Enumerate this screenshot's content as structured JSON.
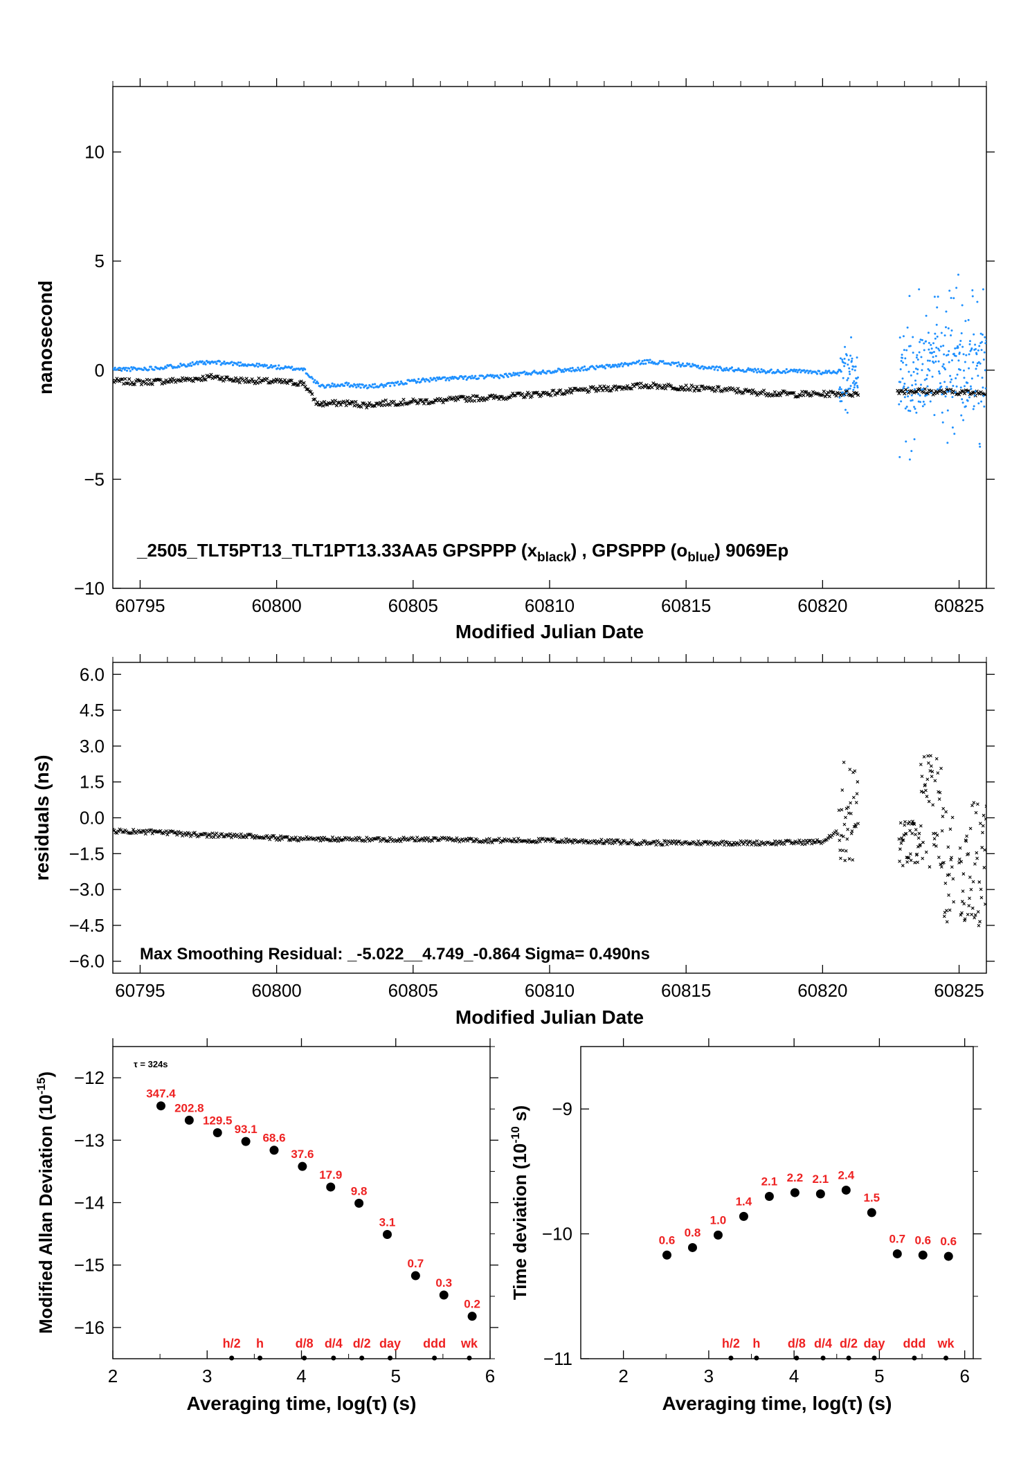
{
  "chart_data": [
    {
      "type": "scatter",
      "xlabel": "Modified Julian Date",
      "ylabel": "nanosecond",
      "xlim": [
        60794,
        60826
      ],
      "ylim": [
        -10,
        13
      ],
      "xticks": [
        60795,
        60800,
        60805,
        60810,
        60815,
        60820,
        60825
      ],
      "yticks": [
        -10,
        -5,
        0,
        5,
        10
      ],
      "annotation": {
        "prefix": "_2505_TLT5PT13_TLT1PT13.33AA5     GPSPPP (x",
        "sub1": "black",
        "mid": ") ,  GPSPPP (o",
        "sub2": "blue",
        "suffix": ")  9069Ep"
      },
      "colors": {
        "black_series": "#000000",
        "blue_series": "#1e90ff"
      },
      "series": [
        {
          "color": "#000000",
          "marker": "x",
          "x": [
            60794.0,
            60795.0,
            60796.0,
            60797.0,
            60797.7,
            60798.5,
            60799.5,
            60800.3,
            60801.0,
            60801.3,
            60801.5,
            60802.5,
            60803.3,
            60804.0,
            60805.0,
            60806.0,
            60807.0,
            60808.0,
            60809.0,
            60810.0,
            60811.0,
            60812.0,
            60813.0,
            60813.6,
            60814.5,
            60815.5,
            60816.5,
            60817.3,
            60818.0,
            60819.0,
            60820.0,
            60820.8,
            60821.3,
            60822.8,
            60823.5,
            60824.0,
            60824.5,
            60825.0,
            60825.5,
            60826.0
          ],
          "y": [
            -0.5,
            -0.55,
            -0.5,
            -0.4,
            -0.3,
            -0.45,
            -0.5,
            -0.55,
            -0.6,
            -1.2,
            -1.55,
            -1.5,
            -1.6,
            -1.5,
            -1.45,
            -1.4,
            -1.3,
            -1.25,
            -1.15,
            -1.05,
            -0.95,
            -0.85,
            -0.75,
            -0.7,
            -0.75,
            -0.85,
            -0.9,
            -1.0,
            -1.05,
            -1.1,
            -1.1,
            -1.05,
            -1.1,
            -0.95,
            -0.95,
            -1.0,
            -1.0,
            -1.0,
            -1.05,
            -1.0
          ]
        },
        {
          "color": "#1e90ff",
          "marker": "o",
          "x": [
            60794.0,
            60795.0,
            60796.0,
            60797.0,
            60797.7,
            60798.5,
            60799.5,
            60800.3,
            60801.0,
            60801.3,
            60801.6,
            60802.5,
            60803.3,
            60804.0,
            60805.0,
            60806.0,
            60807.0,
            60808.0,
            60809.0,
            60810.0,
            60811.0,
            60812.0,
            60813.0,
            60813.6,
            60814.5,
            60815.5,
            60816.5,
            60817.3,
            60818.0,
            60819.0,
            60820.0,
            60820.7
          ],
          "y": [
            0.05,
            0.05,
            0.15,
            0.3,
            0.35,
            0.3,
            0.2,
            0.1,
            0.05,
            -0.4,
            -0.75,
            -0.65,
            -0.75,
            -0.7,
            -0.5,
            -0.4,
            -0.35,
            -0.3,
            -0.15,
            -0.05,
            0.05,
            0.15,
            0.3,
            0.4,
            0.3,
            0.15,
            0.05,
            0.0,
            -0.05,
            -0.05,
            -0.1,
            -0.05
          ]
        }
      ]
    },
    {
      "type": "scatter",
      "xlabel": "Modified Julian Date",
      "ylabel": "residuals (ns)",
      "xlim": [
        60794,
        60826
      ],
      "ylim": [
        -6.5,
        6.5
      ],
      "xticks": [
        60795,
        60800,
        60805,
        60810,
        60815,
        60820,
        60825
      ],
      "yticks": [
        -6.0,
        -4.5,
        -3.0,
        -1.5,
        0.0,
        1.5,
        3.0,
        4.5,
        6.0
      ],
      "ytick_labels": [
        "−6.0",
        "−4.5",
        "−3.0",
        "−1.5",
        "0.0",
        "1.5",
        "3.0",
        "4.5",
        "6.0"
      ],
      "annotation": "Max Smoothing Residual: _-5.022__4.749_-0.864  Sigma= 0.490ns",
      "series": [
        {
          "color": "#000000",
          "marker": "x",
          "x": [
            60794.0,
            60795.5,
            60797.0,
            60798.5,
            60800.0,
            60802.0,
            60804.0,
            60806.0,
            60808.0,
            60810.0,
            60812.0,
            60814.0,
            60816.0,
            60818.0,
            60820.0,
            60820.7,
            60821.0,
            60821.2,
            60822.8,
            60823.3,
            60823.8,
            60824.0,
            60824.3,
            60824.6,
            60825.0,
            60825.5,
            60826.0
          ],
          "y": [
            -0.55,
            -0.6,
            -0.7,
            -0.75,
            -0.85,
            -0.9,
            -0.9,
            -0.9,
            -0.95,
            -0.95,
            -1.0,
            -1.05,
            -1.05,
            -1.05,
            -1.0,
            -0.5,
            0.0,
            1.5,
            -1.1,
            -1.3,
            -1.0,
            1.0,
            -2.0,
            -3.5,
            -0.5,
            -2.5,
            -4.3
          ]
        }
      ]
    },
    {
      "type": "scatter",
      "xlabel": "Averaging time, log(τ) (s)",
      "ylabel": "Modified Allan Deviation (10",
      "ylabel_sup": "-15",
      "ylabel_tail": ")",
      "tau_note": "τ = 324s",
      "xlim": [
        2,
        6
      ],
      "ylim": [
        -16.5,
        -11.5
      ],
      "xticks": [
        2,
        3,
        4,
        5,
        6
      ],
      "yticks": [
        -16,
        -15,
        -14,
        -13,
        -12
      ],
      "x": [
        2.51,
        2.81,
        3.11,
        3.41,
        3.71,
        4.01,
        4.31,
        4.61,
        4.91,
        5.21,
        5.51,
        5.81
      ],
      "y": [
        -12.45,
        -12.68,
        -12.88,
        -13.02,
        -13.16,
        -13.42,
        -13.75,
        -14.01,
        -14.51,
        -15.17,
        -15.48,
        -15.82
      ],
      "point_labels": [
        "347.4",
        "202.8",
        "129.5",
        "93.1",
        "68.6",
        "37.6",
        "17.9",
        "9.8",
        "3.1",
        "0.7",
        "0.3",
        "0.2"
      ],
      "markers": {
        "labels": [
          "h/2",
          "h",
          "d/8",
          "d/4",
          "d/2",
          "day",
          "ddd",
          "wk"
        ],
        "x": [
          3.26,
          3.56,
          4.03,
          4.34,
          4.64,
          4.94,
          5.41,
          5.78
        ]
      }
    },
    {
      "type": "scatter",
      "xlabel": "Averaging time, log(τ) (s)",
      "ylabel": "Time deviation (10",
      "ylabel_sup": "-10",
      "ylabel_tail": " s)",
      "xlim": [
        1.5,
        6.1
      ],
      "ylim": [
        -11,
        -8.5
      ],
      "xticks": [
        2,
        3,
        4,
        5,
        6
      ],
      "yticks": [
        -11,
        -10,
        -9
      ],
      "x": [
        2.51,
        2.81,
        3.11,
        3.41,
        3.71,
        4.01,
        4.31,
        4.61,
        4.91,
        5.21,
        5.51,
        5.81
      ],
      "y": [
        -10.17,
        -10.11,
        -10.01,
        -9.86,
        -9.7,
        -9.67,
        -9.68,
        -9.65,
        -9.83,
        -10.16,
        -10.17,
        -10.18
      ],
      "point_labels": [
        "0.6",
        "0.8",
        "1.0",
        "1.4",
        "2.1",
        "2.2",
        "2.1",
        "2.4",
        "1.5",
        "0.7",
        "0.6",
        "0.6"
      ],
      "markers": {
        "labels": [
          "h/2",
          "h",
          "d/8",
          "d/4",
          "d/2",
          "day",
          "ddd",
          "wk"
        ],
        "x": [
          3.26,
          3.56,
          4.03,
          4.34,
          4.64,
          4.94,
          5.41,
          5.78
        ]
      }
    }
  ]
}
